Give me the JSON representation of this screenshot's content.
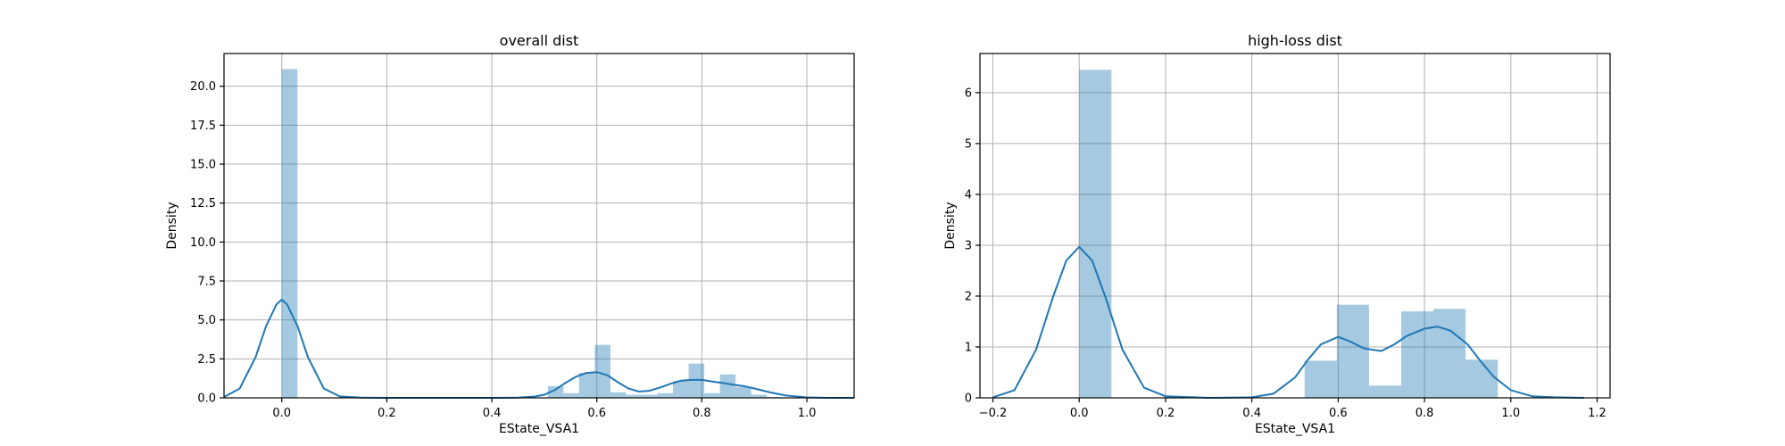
{
  "colors": {
    "hist": "#1f77b4",
    "kde": "#1f77b4",
    "grid": "#b0b0b0"
  },
  "chart_data": [
    {
      "type": "bar",
      "title": "overall dist",
      "xlabel": "EState_VSA1",
      "ylabel": "Density",
      "xlim": [
        -0.11,
        1.09
      ],
      "ylim": [
        0,
        22.1
      ],
      "xticks": [
        0.0,
        0.2,
        0.4,
        0.6,
        0.8,
        1.0
      ],
      "xtick_labels": [
        "0.0",
        "0.2",
        "0.4",
        "0.6",
        "0.8",
        "1.0"
      ],
      "yticks": [
        0.0,
        2.5,
        5.0,
        7.5,
        10.0,
        12.5,
        15.0,
        17.5,
        20.0
      ],
      "ytick_labels": [
        "0.0",
        "2.5",
        "5.0",
        "7.5",
        "10.0",
        "12.5",
        "15.0",
        "17.5",
        "20.0"
      ],
      "grid": true,
      "histogram": {
        "bin_edges": [
          0.0,
          0.0298,
          0.0596,
          0.0894,
          0.1192,
          0.149,
          0.1788,
          0.2086,
          0.2384,
          0.2682,
          0.298,
          0.3278,
          0.3576,
          0.3874,
          0.4172,
          0.447,
          0.4768,
          0.5066,
          0.5364,
          0.5662,
          0.596,
          0.6258,
          0.6556,
          0.6854,
          0.7152,
          0.745,
          0.7748,
          0.8046,
          0.8344,
          0.8642,
          0.894,
          0.9238,
          0.9536
        ],
        "values": [
          21.1,
          0,
          0,
          0,
          0,
          0,
          0,
          0,
          0,
          0,
          0,
          0,
          0,
          0,
          0,
          0,
          0,
          0.75,
          0.3,
          1.6,
          3.4,
          0.35,
          0.2,
          0.2,
          0.3,
          1.1,
          2.2,
          0.3,
          1.5,
          0.7,
          0.2,
          0.05
        ]
      },
      "kde": {
        "x": [
          -0.11,
          -0.08,
          -0.05,
          -0.03,
          -0.01,
          0.0,
          0.01,
          0.03,
          0.05,
          0.08,
          0.11,
          0.15,
          0.2,
          0.3,
          0.4,
          0.45,
          0.48,
          0.5,
          0.52,
          0.54,
          0.56,
          0.58,
          0.6,
          0.62,
          0.64,
          0.66,
          0.68,
          0.7,
          0.72,
          0.74,
          0.76,
          0.78,
          0.8,
          0.82,
          0.84,
          0.86,
          0.88,
          0.9,
          0.93,
          0.96,
          1.0,
          1.04,
          1.09
        ],
        "y": [
          0.05,
          0.6,
          2.6,
          4.6,
          6.0,
          6.3,
          6.0,
          4.6,
          2.6,
          0.6,
          0.1,
          0.02,
          0.0,
          0.0,
          0.0,
          0.02,
          0.08,
          0.2,
          0.5,
          0.95,
          1.35,
          1.6,
          1.65,
          1.45,
          1.0,
          0.6,
          0.4,
          0.45,
          0.65,
          0.9,
          1.1,
          1.15,
          1.15,
          1.05,
          0.95,
          0.85,
          0.75,
          0.6,
          0.35,
          0.15,
          0.03,
          0.0,
          0.0
        ]
      }
    },
    {
      "type": "bar",
      "title": "high-loss dist",
      "xlabel": "EState_VSA1",
      "ylabel": "Density",
      "xlim": [
        -0.23,
        1.23
      ],
      "ylim": [
        0,
        6.77
      ],
      "xticks": [
        -0.2,
        0.0,
        0.2,
        0.4,
        0.6,
        0.8,
        1.0,
        1.2
      ],
      "xtick_labels": [
        "−0.2",
        "0.0",
        "0.2",
        "0.4",
        "0.6",
        "0.8",
        "1.0",
        "1.2"
      ],
      "yticks": [
        0,
        1,
        2,
        3,
        4,
        5,
        6
      ],
      "ytick_labels": [
        "0",
        "1",
        "2",
        "3",
        "4",
        "5",
        "6"
      ],
      "grid": true,
      "histogram": {
        "bin_edges": [
          0.0,
          0.0746,
          0.1492,
          0.2238,
          0.2984,
          0.373,
          0.4476,
          0.5222,
          0.5968,
          0.6714,
          0.746,
          0.8206,
          0.8952,
          0.9698
        ],
        "values": [
          6.45,
          0,
          0,
          0,
          0,
          0,
          0,
          0.73,
          1.83,
          0.24,
          1.7,
          1.75,
          0.75
        ]
      },
      "kde": {
        "x": [
          -0.2,
          -0.15,
          -0.1,
          -0.06,
          -0.03,
          0.0,
          0.03,
          0.06,
          0.1,
          0.15,
          0.2,
          0.3,
          0.4,
          0.45,
          0.5,
          0.53,
          0.56,
          0.6,
          0.63,
          0.66,
          0.7,
          0.73,
          0.76,
          0.8,
          0.83,
          0.86,
          0.9,
          0.93,
          0.96,
          1.0,
          1.05,
          1.1,
          1.17
        ],
        "y": [
          0.01,
          0.15,
          0.95,
          2.0,
          2.7,
          2.97,
          2.7,
          2.0,
          0.95,
          0.2,
          0.03,
          0.0,
          0.01,
          0.08,
          0.4,
          0.75,
          1.05,
          1.2,
          1.1,
          0.97,
          0.92,
          1.05,
          1.22,
          1.36,
          1.4,
          1.32,
          1.05,
          0.72,
          0.42,
          0.15,
          0.03,
          0.01,
          0.0
        ]
      }
    }
  ]
}
